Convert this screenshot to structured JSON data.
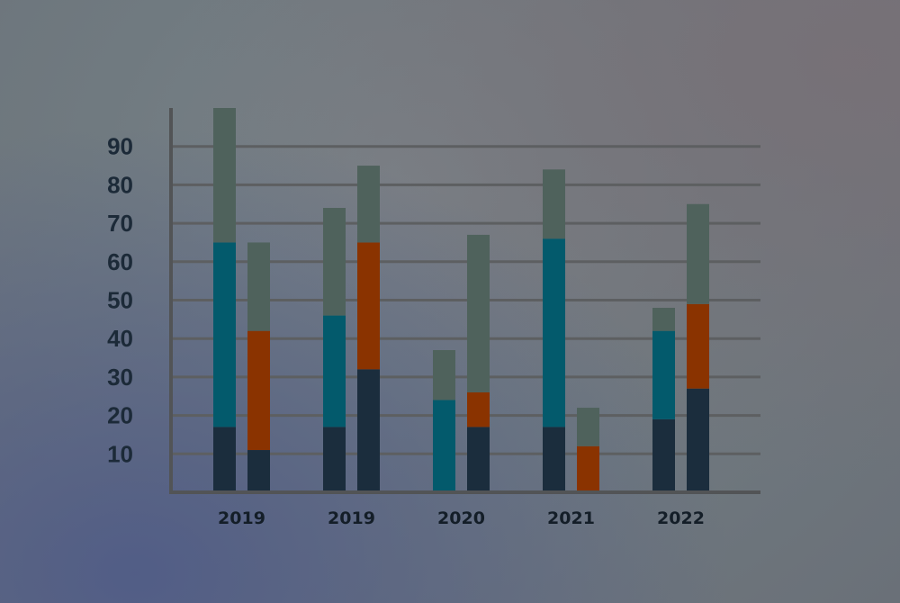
{
  "colors": {
    "background": "#6f777c",
    "gridline": "#5d5f61",
    "axis": "#525456",
    "base_segment": "#1b2d3d",
    "teal_segment": "#035a6c",
    "orange_segment": "#8a3300",
    "gray_segment": "#4f625c"
  },
  "chart_data": {
    "type": "bar",
    "stacked": true,
    "title": "",
    "xlabel": "",
    "ylabel": "",
    "ylim": [
      0,
      100
    ],
    "yticks": [
      10,
      20,
      30,
      40,
      50,
      60,
      70,
      80,
      90
    ],
    "grid": true,
    "legend": "none",
    "groups": [
      {
        "label": "2019",
        "bars": [
          [
            {
              "value": 17,
              "color": "#1b2d3d"
            },
            {
              "value": 48,
              "color": "#035a6c"
            },
            {
              "value": 35,
              "color": "#4f625c"
            }
          ],
          [
            {
              "value": 11,
              "color": "#1b2d3d"
            },
            {
              "value": 31,
              "color": "#8a3300"
            },
            {
              "value": 23,
              "color": "#4f625c"
            }
          ]
        ]
      },
      {
        "label": "2019",
        "bars": [
          [
            {
              "value": 17,
              "color": "#1b2d3d"
            },
            {
              "value": 29,
              "color": "#035a6c"
            },
            {
              "value": 28,
              "color": "#4f625c"
            }
          ],
          [
            {
              "value": 32,
              "color": "#1b2d3d"
            },
            {
              "value": 33,
              "color": "#8a3300"
            },
            {
              "value": 20,
              "color": "#4f625c"
            }
          ]
        ]
      },
      {
        "label": "2020",
        "bars": [
          [
            {
              "value": 0,
              "color": "#1b2d3d"
            },
            {
              "value": 24,
              "color": "#035a6c"
            },
            {
              "value": 13,
              "color": "#4f625c"
            }
          ],
          [
            {
              "value": 17,
              "color": "#1b2d3d"
            },
            {
              "value": 9,
              "color": "#8a3300"
            },
            {
              "value": 41,
              "color": "#4f625c"
            }
          ]
        ]
      },
      {
        "label": "2021",
        "bars": [
          [
            {
              "value": 17,
              "color": "#1b2d3d"
            },
            {
              "value": 49,
              "color": "#035a6c"
            },
            {
              "value": 18,
              "color": "#4f625c"
            }
          ],
          [
            {
              "value": 0,
              "color": "#1b2d3d"
            },
            {
              "value": 12,
              "color": "#8a3300"
            },
            {
              "value": 10,
              "color": "#4f625c"
            }
          ]
        ]
      },
      {
        "label": "2022",
        "bars": [
          [
            {
              "value": 19,
              "color": "#1b2d3d"
            },
            {
              "value": 23,
              "color": "#035a6c"
            },
            {
              "value": 6,
              "color": "#4f625c"
            }
          ],
          [
            {
              "value": 27,
              "color": "#1b2d3d"
            },
            {
              "value": 22,
              "color": "#8a3300"
            },
            {
              "value": 26,
              "color": "#4f625c"
            }
          ]
        ]
      }
    ]
  }
}
